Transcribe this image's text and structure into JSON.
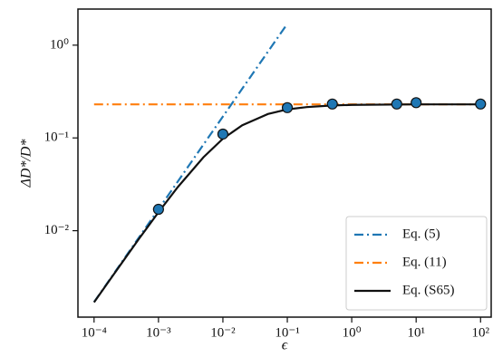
{
  "chart_data": {
    "type": "line",
    "xlabel": "ϵ",
    "ylabel": "ΔD*/D*",
    "xscale": "log",
    "yscale": "log",
    "xlim": [
      5.62e-05,
      151
    ],
    "ylim": [
      0.00117,
      2.45
    ],
    "xticks": [
      {
        "value": 0.0001,
        "label": "10⁻⁴"
      },
      {
        "value": 0.001,
        "label": "10⁻³"
      },
      {
        "value": 0.01,
        "label": "10⁻²"
      },
      {
        "value": 0.1,
        "label": "10⁻¹"
      },
      {
        "value": 1,
        "label": "10⁰"
      },
      {
        "value": 10,
        "label": "10¹"
      },
      {
        "value": 100,
        "label": "10²"
      }
    ],
    "yticks": [
      {
        "value": 0.01,
        "label": "10⁻²"
      },
      {
        "value": 0.1,
        "label": "10⁻¹"
      },
      {
        "value": 1,
        "label": "10⁰"
      }
    ],
    "legend": "lower right",
    "series": [
      {
        "name": "Eq. (5)",
        "color": "#1f77b4",
        "dash": "dashdot",
        "x": [
          0.0001,
          0.1
        ],
        "values": [
          0.0017,
          1.7
        ]
      },
      {
        "name": "Eq. (11)",
        "color": "#ff7f0e",
        "dash": "dashdot",
        "x": [
          0.0001,
          100
        ],
        "values": [
          0.23,
          0.23
        ]
      },
      {
        "name": "Eq. (S65)",
        "color": "#111111",
        "dash": "solid",
        "x": [
          0.0001,
          0.0002,
          0.0005,
          0.001,
          0.002,
          0.005,
          0.01,
          0.02,
          0.05,
          0.1,
          0.2,
          0.5,
          1,
          10,
          100
        ],
        "values": [
          0.00169,
          0.00335,
          0.0082,
          0.0158,
          0.0296,
          0.062,
          0.098,
          0.137,
          0.181,
          0.203,
          0.215,
          0.224,
          0.227,
          0.23,
          0.23
        ]
      }
    ],
    "markers": {
      "color": "#1f77b4",
      "x": [
        0.001,
        0.01,
        0.1,
        0.5,
        5,
        10,
        100
      ],
      "values": [
        0.017,
        0.11,
        0.212,
        0.232,
        0.232,
        0.24,
        0.232
      ]
    }
  }
}
